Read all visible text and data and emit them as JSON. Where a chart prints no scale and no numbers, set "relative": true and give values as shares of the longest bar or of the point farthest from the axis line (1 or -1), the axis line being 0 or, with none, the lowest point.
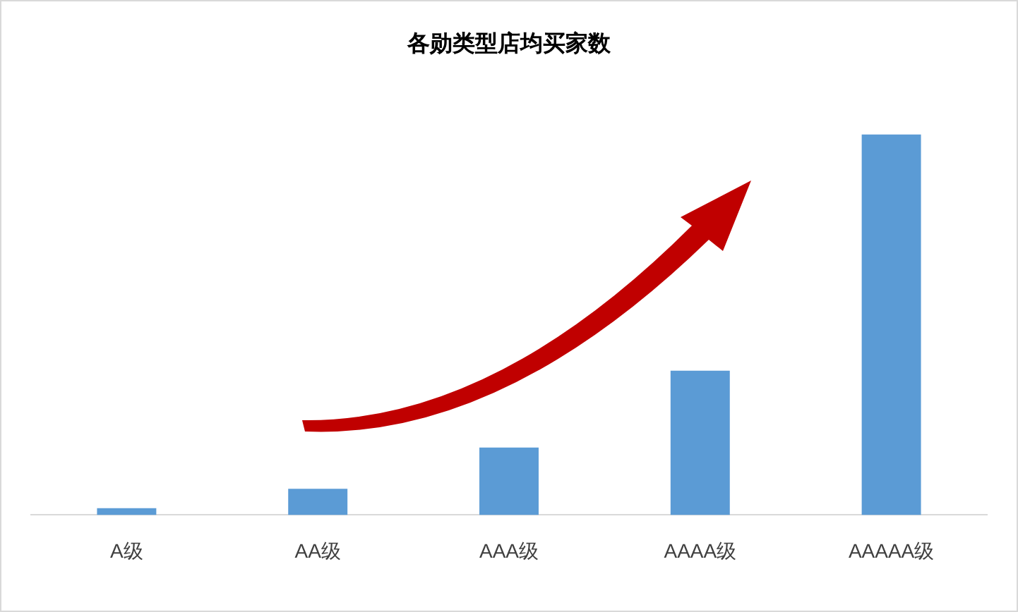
{
  "chart_data": {
    "type": "bar",
    "title": "各勋类型店均买家数",
    "categories": [
      "A级",
      "AA级",
      "AAA级",
      "AAAA级",
      "AAAAA级"
    ],
    "values": [
      0.018,
      0.069,
      0.177,
      0.379,
      1
    ],
    "color": "#5b9bd5",
    "relative": true,
    "grid": false,
    "legend": false
  }
}
